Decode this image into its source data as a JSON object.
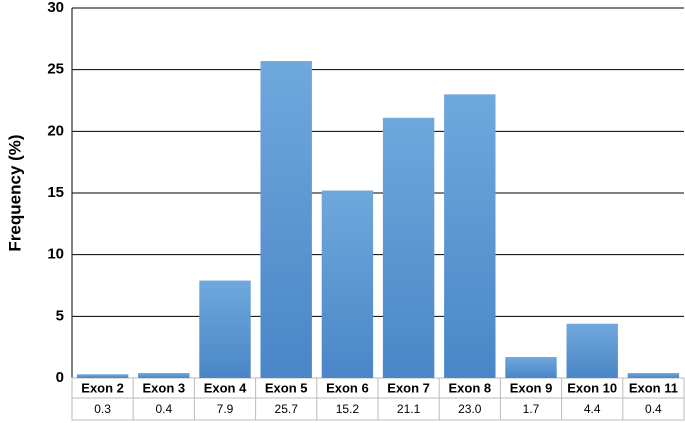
{
  "chart_data": {
    "type": "bar",
    "y_label": "Frequency (%)",
    "categories": [
      "Exon 2",
      "Exon 3",
      "Exon 4",
      "Exon 5",
      "Exon 6",
      "Exon 7",
      "Exon 8",
      "Exon 9",
      "Exon 10",
      "Exon 11"
    ],
    "values": [
      0.3,
      0.4,
      7.9,
      25.7,
      15.2,
      21.1,
      23.0,
      1.7,
      4.4,
      0.4
    ],
    "value_labels": [
      "0.3",
      "0.4",
      "7.9",
      "25.7",
      "15.2",
      "21.1",
      "23.0",
      "1.7",
      "4.4",
      "0.4"
    ],
    "color": "#5b9bd5",
    "ylim": [
      0,
      30
    ],
    "yticks": [
      0,
      5,
      10,
      15,
      20,
      25,
      30
    ],
    "grid": true
  }
}
